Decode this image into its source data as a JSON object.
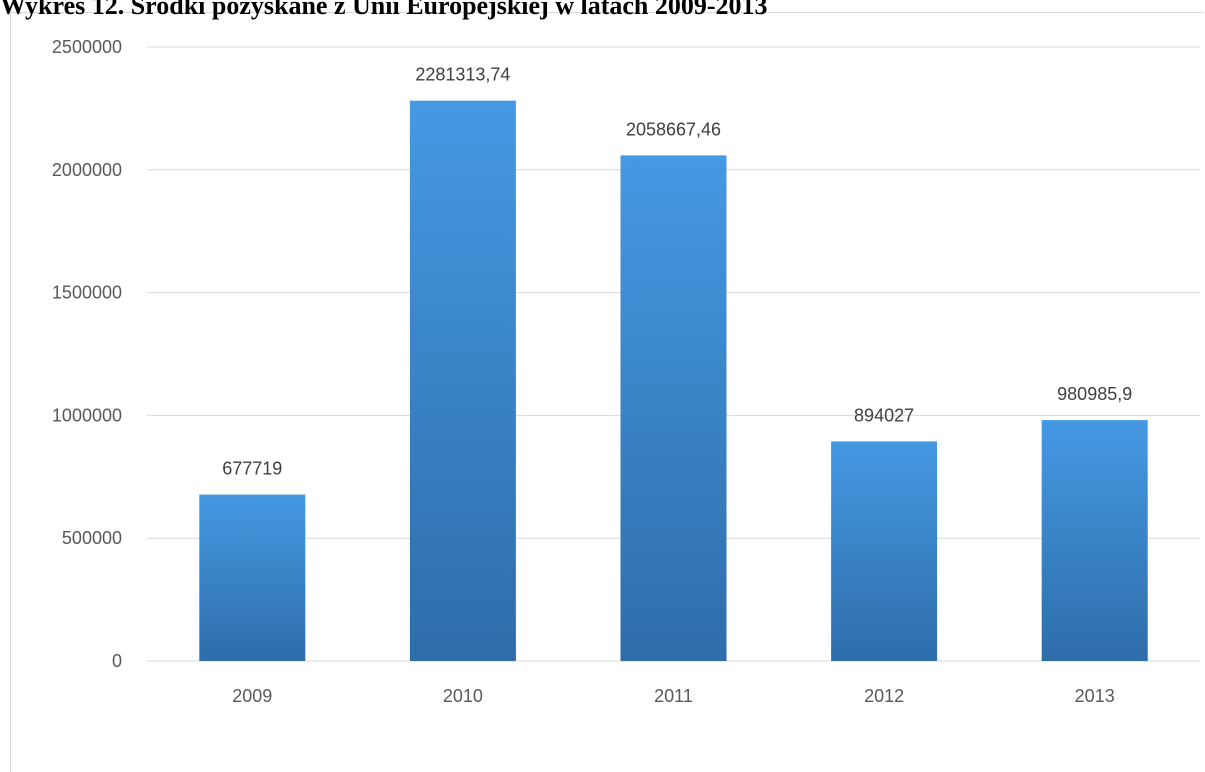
{
  "chart_data": {
    "type": "bar",
    "title": "Wykres 12. Środki pozyskane z Unii Europejskiej w latach 2009-2013",
    "categories": [
      "2009",
      "2010",
      "2011",
      "2012",
      "2013"
    ],
    "values": [
      677719,
      2281313.74,
      2058667.46,
      894027,
      980985.9
    ],
    "data_labels": [
      "677719",
      "2281313,74",
      "2058667,46",
      "894027",
      "980985,9"
    ],
    "ylim": [
      0,
      2500000
    ],
    "yticks": [
      0,
      500000,
      1000000,
      1500000,
      2000000,
      2500000
    ],
    "ytick_labels": [
      "0",
      "500000",
      "1000000",
      "1500000",
      "2000000",
      "2500000"
    ],
    "xlabel": "",
    "ylabel": "",
    "grid": true,
    "legend": "none",
    "colors": {
      "bar_top": "#4599e3",
      "bar_bottom": "#2e6daa",
      "grid": "#d9d9d9",
      "tick_text": "#595959",
      "label_text": "#404040"
    }
  }
}
